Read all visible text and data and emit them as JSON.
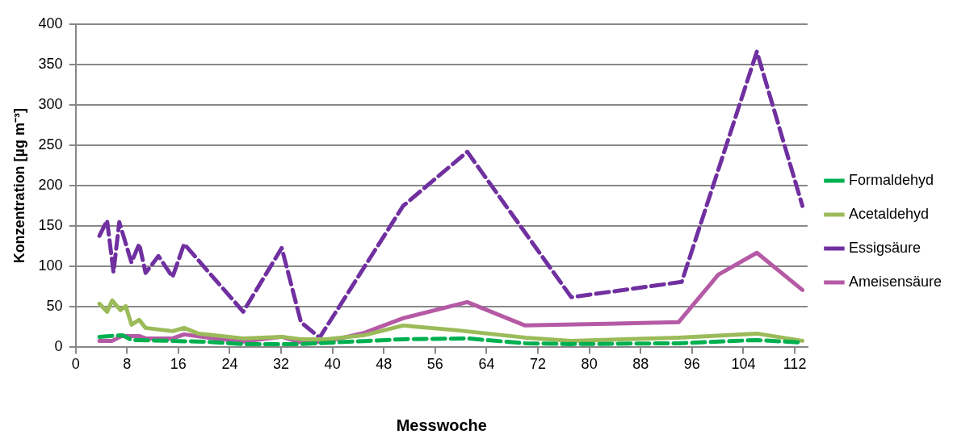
{
  "chart_data": {
    "type": "line",
    "xlabel": "Messwoche",
    "ylabel": "Konzentration [µg m⁻³]",
    "xlim": [
      0,
      114
    ],
    "xticks": [
      0,
      8,
      16,
      24,
      32,
      40,
      48,
      56,
      64,
      72,
      80,
      88,
      96,
      104,
      112
    ],
    "ylim": [
      0,
      400
    ],
    "yticks": [
      0,
      50,
      100,
      150,
      200,
      250,
      300,
      350,
      400
    ],
    "grid": "y",
    "legend": "right",
    "marker": "none",
    "series": [
      {
        "name": "Formaldehyd",
        "color": "#00b050",
        "line_style": "dashed",
        "x": [
          3.7,
          7.3,
          8.7,
          20,
          26,
          35,
          45.7,
          51,
          61,
          70,
          77,
          94,
          106,
          113
        ],
        "values": [
          13,
          15,
          9,
          7,
          4,
          4,
          8,
          10,
          11,
          5,
          4,
          5,
          9,
          6
        ]
      },
      {
        "name": "Acetaldehyd",
        "color": "#9bbb59",
        "line_style": "solid",
        "x": [
          3.7,
          4.9,
          5.7,
          7,
          7.8,
          8.7,
          9.9,
          10.9,
          15.1,
          16.9,
          19.1,
          26.1,
          32.1,
          35.1,
          39,
          45,
          51,
          59.5,
          70,
          77.2,
          93.9,
          106.1,
          113.2
        ],
        "values": [
          54,
          44,
          58,
          46,
          51,
          28,
          34,
          24,
          20,
          24,
          17,
          11,
          13,
          10,
          10,
          15,
          27,
          21,
          12,
          8,
          12,
          17,
          8
        ]
      },
      {
        "name": "Essigsäure",
        "color": "#7030a0",
        "line_style": "dashed",
        "x": [
          3.7,
          4.9,
          5.9,
          6.8,
          8.7,
          9.9,
          10.9,
          12.9,
          15.1,
          16.9,
          26.1,
          32.1,
          35.1,
          38,
          51,
          61,
          77.2,
          94.4,
          106.1,
          113.2
        ],
        "values": [
          138,
          157,
          93,
          155,
          105,
          128,
          92,
          113,
          87,
          128,
          44,
          123,
          31,
          12,
          175,
          242,
          62,
          81,
          366,
          175
        ]
      },
      {
        "name": "Ameisensäure",
        "color": "#b55aa5",
        "line_style": "solid",
        "x": [
          3.7,
          5.7,
          7.2,
          9.9,
          10.9,
          15.1,
          16.9,
          19.6,
          26.1,
          32.1,
          34.6,
          39,
          45,
          51,
          61,
          70,
          93.9,
          100.1,
          106.1,
          113.2
        ],
        "values": [
          8,
          8,
          14,
          14,
          11,
          11,
          16,
          13,
          7,
          13,
          7,
          7,
          18,
          36,
          56,
          27,
          31,
          90,
          117,
          71
        ]
      }
    ]
  }
}
